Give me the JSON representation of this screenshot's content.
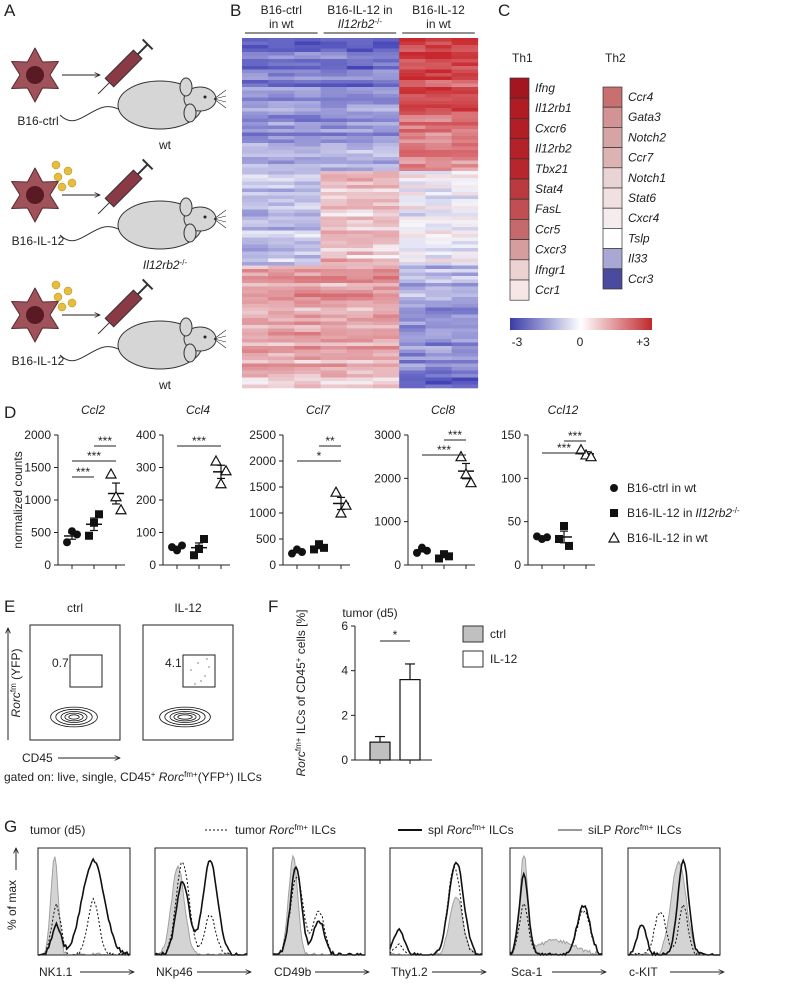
{
  "panel_labels": [
    "A",
    "B",
    "C",
    "D",
    "E",
    "F",
    "G"
  ],
  "panel_a": {
    "rows": [
      {
        "cell": "B16-ctrl",
        "mouse": "wt"
      },
      {
        "cell": "B16-IL-12",
        "mouse": "Il12rb2",
        "mouse_sup": "-/-"
      },
      {
        "cell": "B16-IL-12",
        "mouse": "wt"
      }
    ]
  },
  "panel_b": {
    "groups": [
      {
        "line1": "B16-ctrl",
        "line2": "in wt"
      },
      {
        "line1": "B16-IL-12 in",
        "line2": "Il12rb2",
        "line2_sup": "-/-"
      },
      {
        "line1": "B16-IL-12",
        "line2": "in wt"
      }
    ]
  },
  "panel_c": {
    "columns": [
      {
        "title": "Th1",
        "genes": [
          {
            "name": "Ifng",
            "color": "#a4161f"
          },
          {
            "name": "Il12rb1",
            "color": "#b01c24"
          },
          {
            "name": "Cxcr6",
            "color": "#b21e26"
          },
          {
            "name": "Il12rb2",
            "color": "#b42128"
          },
          {
            "name": "Tbx21",
            "color": "#b6262c"
          },
          {
            "name": "Stat4",
            "color": "#ba3a3f"
          },
          {
            "name": "FasL",
            "color": "#c04e52"
          },
          {
            "name": "Ccr5",
            "color": "#c46a6c"
          },
          {
            "name": "Cxcr3",
            "color": "#d69d9e"
          },
          {
            "name": "Ifngr1",
            "color": "#ecd2d3"
          },
          {
            "name": "Ccr1",
            "color": "#f6e6e6"
          }
        ]
      },
      {
        "title": "Th2",
        "genes": [
          {
            "name": "Ccr4",
            "color": "#c7706f"
          },
          {
            "name": "Gata3",
            "color": "#d19393"
          },
          {
            "name": "Notch2",
            "color": "#d7a4a5"
          },
          {
            "name": "Ccr7",
            "color": "#dcb2b3"
          },
          {
            "name": "Notch1",
            "color": "#ead3d4"
          },
          {
            "name": "Stat6",
            "color": "#f0e0e1"
          },
          {
            "name": "Cxcr4",
            "color": "#f5eded"
          },
          {
            "name": "Tslp",
            "color": "#ffffff"
          },
          {
            "name": "Il33",
            "color": "#a9a8d5"
          },
          {
            "name": "Ccr3",
            "color": "#4a4a9e"
          }
        ]
      }
    ],
    "colorbar": {
      "colors": [
        "#3a3ca8",
        "#ffffff",
        "#c0282d"
      ],
      "labels": [
        "-3",
        "0",
        "+3"
      ]
    }
  },
  "chart_data": [
    {
      "type": "dot",
      "title": "Ccl2",
      "ylabel": "normalized counts",
      "ylim": [
        0,
        2000
      ],
      "yticks": [
        0,
        500,
        1000,
        1500,
        2000
      ],
      "series": [
        {
          "name": "B16-ctrl in wt",
          "marker": "circle",
          "values": [
            350,
            520,
            470
          ]
        },
        {
          "name": "B16-IL-12 in",
          "name_italic": "Il12rb2",
          "name_sup": "-/-",
          "marker": "square",
          "values": [
            450,
            650,
            780
          ]
        },
        {
          "name": "B16-IL-12 in wt",
          "marker": "triangle-open",
          "values": [
            1400,
            1050,
            850
          ]
        }
      ],
      "significance": [
        "***",
        "***",
        "***"
      ]
    },
    {
      "type": "dot",
      "title": "Ccl4",
      "ylim": [
        0,
        400
      ],
      "yticks": [
        0,
        100,
        200,
        300,
        400
      ],
      "series": [
        {
          "marker": "circle",
          "values": [
            55,
            45,
            60
          ]
        },
        {
          "marker": "square",
          "values": [
            30,
            50,
            80
          ]
        },
        {
          "marker": "triangle-open",
          "values": [
            320,
            250,
            290
          ]
        }
      ],
      "significance": [
        "***"
      ]
    },
    {
      "type": "dot",
      "title": "Ccl7",
      "ylim": [
        0,
        2500
      ],
      "yticks": [
        0,
        500,
        1000,
        1500,
        2000,
        2500
      ],
      "series": [
        {
          "marker": "circle",
          "values": [
            220,
            300,
            250
          ]
        },
        {
          "marker": "square",
          "values": [
            300,
            400,
            330
          ]
        },
        {
          "marker": "triangle-open",
          "values": [
            1400,
            1000,
            1150
          ]
        }
      ],
      "significance": [
        "**",
        "*"
      ]
    },
    {
      "type": "dot",
      "title": "Ccl8",
      "ylim": [
        0,
        3000
      ],
      "yticks": [
        0,
        1000,
        2000,
        3000
      ],
      "series": [
        {
          "marker": "circle",
          "values": [
            280,
            400,
            330
          ]
        },
        {
          "marker": "square",
          "values": [
            150,
            250,
            200
          ]
        },
        {
          "marker": "triangle-open",
          "values": [
            2500,
            2100,
            1900
          ]
        }
      ],
      "significance": [
        "***",
        "***"
      ]
    },
    {
      "type": "dot",
      "title": "Ccl12",
      "ylim": [
        0,
        150
      ],
      "yticks": [
        0,
        50,
        100,
        150
      ],
      "series": [
        {
          "marker": "circle",
          "values": [
            33,
            30,
            32
          ]
        },
        {
          "marker": "square",
          "values": [
            30,
            45,
            22
          ]
        },
        {
          "marker": "triangle-open",
          "values": [
            133,
            127,
            125
          ]
        }
      ],
      "significance": [
        "***",
        "***"
      ]
    },
    {
      "type": "bar",
      "title": "tumor (d5)",
      "ylabel_parts": [
        "Rorc",
        "fm+",
        " ILCs of CD45",
        "+",
        " cells [%]"
      ],
      "categories": [
        "ctrl",
        "IL-12"
      ],
      "values": [
        0.8,
        3.6
      ],
      "errors": [
        0.25,
        0.7
      ],
      "colors": [
        "#c0c0c0",
        "#ffffff"
      ],
      "ylim": [
        0,
        6
      ],
      "yticks": [
        0,
        2,
        4,
        6
      ],
      "significance": [
        "*"
      ]
    }
  ],
  "panel_e": {
    "plots": [
      {
        "title": "ctrl",
        "gate_value": "0.7"
      },
      {
        "title": "IL-12",
        "gate_value": "4.1"
      }
    ],
    "ylabel_parts": [
      "Rorc",
      "fm",
      " (YFP)"
    ],
    "xlabel": "CD45",
    "gating_parts": [
      "gated on: live, single, CD45",
      "+",
      " ",
      "Rorc",
      "fm+",
      "(YFP",
      "+",
      ") ILCs"
    ]
  },
  "panel_g": {
    "title": "tumor (d5)",
    "legend": [
      {
        "parts": [
          "tumor ",
          "Rorc",
          "fm+",
          " ILCs"
        ],
        "style": "dashed"
      },
      {
        "parts": [
          "spl ",
          "Rorc",
          "fm+",
          " ILCs"
        ],
        "style": "solid"
      },
      {
        "parts": [
          "siLP ",
          "Rorc",
          "fm+",
          " ILCs"
        ],
        "style": "grey"
      }
    ],
    "ylabel": "% of max",
    "markers": [
      "NK1.1",
      "NKp46",
      "CD49b",
      "Thy1.2",
      "Sca-1",
      "c-KIT"
    ]
  }
}
